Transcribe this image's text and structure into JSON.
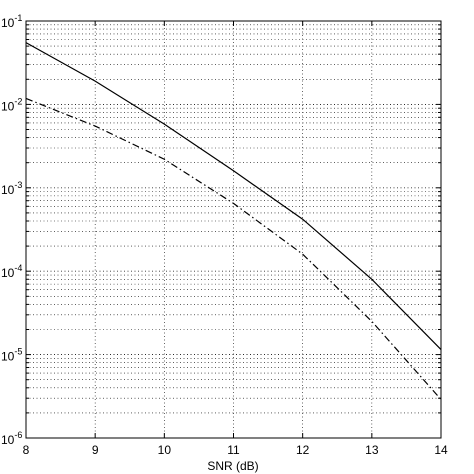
{
  "chart_data": {
    "type": "line",
    "title": "",
    "xlabel": "SNR (dB)",
    "ylabel": "",
    "xlim": [
      8,
      14
    ],
    "ylim": [
      1e-06,
      0.1
    ],
    "yscale": "log",
    "grid": true,
    "legend": "none",
    "x_ticks": [
      8,
      9,
      10,
      11,
      12,
      13,
      14
    ],
    "x_tick_labels": [
      "8",
      "9",
      "10",
      "11",
      "12",
      "13",
      "14"
    ],
    "y_ticks": [
      -6,
      -5,
      -4,
      -3,
      -2,
      -1
    ],
    "y_tick_labels": [
      {
        "base": "10",
        "exp": "-6"
      },
      {
        "base": "10",
        "exp": "-5"
      },
      {
        "base": "10",
        "exp": "-4"
      },
      {
        "base": "10",
        "exp": "-3"
      },
      {
        "base": "10",
        "exp": "-2"
      },
      {
        "base": "10",
        "exp": "-1"
      }
    ],
    "series": [
      {
        "style": "solid",
        "color": "#000000",
        "x": [
          8,
          9,
          10,
          11,
          12,
          13,
          14
        ],
        "y": [
          0.055,
          0.019,
          0.0058,
          0.0016,
          0.00042,
          8e-05,
          1.15e-05
        ]
      },
      {
        "style": "dashdot",
        "color": "#000000",
        "x": [
          8,
          9,
          10,
          11,
          12,
          13,
          14
        ],
        "y": [
          0.0118,
          0.0055,
          0.0022,
          0.00065,
          0.00016,
          2.5e-05,
          2.9e-06
        ]
      }
    ]
  }
}
